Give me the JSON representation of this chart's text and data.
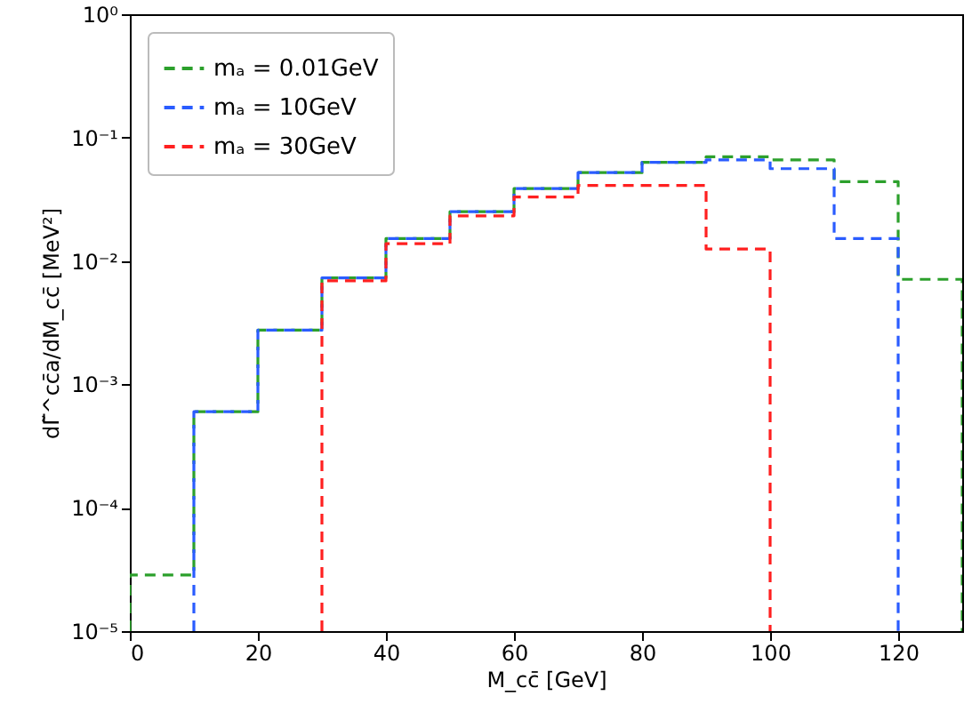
{
  "chart_data": {
    "type": "histogram",
    "xlabel": "M_cc̄ [GeV]",
    "ylabel": "dΓ̃^cc̄a/dM_cc̄ [MeV²]",
    "bins": [
      0,
      10,
      20,
      30,
      40,
      50,
      60,
      70,
      80,
      90,
      100,
      110,
      120,
      130
    ],
    "series": [
      {
        "name": "mₐ = 0.01GeV",
        "color": "#2ca02c",
        "values": [
          2.85e-05,
          0.0006,
          0.00275,
          0.0073,
          0.0152,
          0.0251,
          0.0386,
          0.052,
          0.063,
          0.07,
          0.066,
          0.044,
          0.0071
        ]
      },
      {
        "name": "mₐ = 10GeV",
        "color": "#2a5cff",
        "bins": [
          10,
          20,
          30,
          40,
          50,
          60,
          70,
          80,
          90,
          100,
          110,
          120
        ],
        "values": [
          0.0006,
          0.00275,
          0.0073,
          0.0152,
          0.0251,
          0.0386,
          0.052,
          0.063,
          0.066,
          0.056,
          0.0152
        ]
      },
      {
        "name": "mₐ = 30GeV",
        "color": "#ff2020",
        "bins": [
          30,
          40,
          50,
          60,
          70,
          80,
          90,
          100
        ],
        "values": [
          0.0069,
          0.0138,
          0.0232,
          0.033,
          0.041,
          0.041,
          0.0125
        ]
      }
    ],
    "log": true,
    "xlim": [
      0,
      130
    ],
    "xticks": [
      0,
      20,
      40,
      60,
      80,
      100,
      120
    ],
    "ylim": [
      1e-05,
      1
    ],
    "yticks": [
      {
        "value": 1e-05,
        "label": "10⁻⁵"
      },
      {
        "value": 0.0001,
        "label": "10⁻⁴"
      },
      {
        "value": 0.001,
        "label": "10⁻³"
      },
      {
        "value": 0.01,
        "label": "10⁻²"
      },
      {
        "value": 0.1,
        "label": "10⁻¹"
      },
      {
        "value": 1,
        "label": "10⁰"
      }
    ],
    "grid": false,
    "legend": "top left",
    "line_style": "dashed"
  }
}
